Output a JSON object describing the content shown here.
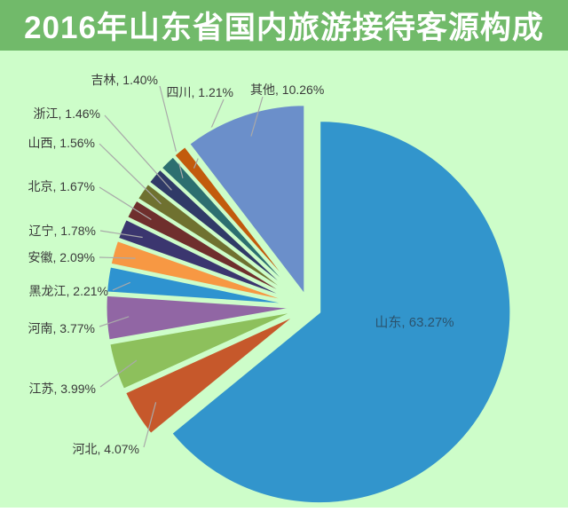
{
  "header": {
    "title": "2016年山东省国内旅游接待客源构成",
    "bg_color": "#71BA6A",
    "text_color": "#FFFFFF"
  },
  "chart_data": {
    "type": "pie",
    "title": "2016年山东省国内旅游接待客源构成",
    "unit": "%",
    "start_angle_deg": 0,
    "direction": "clockwise",
    "exploded": true,
    "legend_position": "none",
    "background_color": "#CDFDC9",
    "label_color": "#3A3A3A",
    "inside_label_color": "#2B536E",
    "leader_line_color": "#A9A9A9",
    "slices": [
      {
        "name": "山东",
        "value": 63.27,
        "label": "山东, 63.27%",
        "color": "#3295CC"
      },
      {
        "name": "河北",
        "value": 4.07,
        "label": "河北, 4.07%",
        "color": "#C6582B"
      },
      {
        "name": "江苏",
        "value": 3.99,
        "label": "江苏, 3.99%",
        "color": "#8DC05C"
      },
      {
        "name": "河南",
        "value": 3.77,
        "label": "河南, 3.77%",
        "color": "#9166A4"
      },
      {
        "name": "黑龙江",
        "value": 2.21,
        "label": "黑龙江, 2.21%",
        "color": "#2E93D0"
      },
      {
        "name": "安徽",
        "value": 2.09,
        "label": "安徽, 2.09%",
        "color": "#F79843"
      },
      {
        "name": "辽宁",
        "value": 1.78,
        "label": "辽宁, 1.78%",
        "color": "#3B366F"
      },
      {
        "name": "北京",
        "value": 1.67,
        "label": "北京, 1.67%",
        "color": "#6F2F2D"
      },
      {
        "name": "山西",
        "value": 1.56,
        "label": "山西, 1.56%",
        "color": "#6F7130"
      },
      {
        "name": "浙江",
        "value": 1.46,
        "label": "浙江, 1.46%",
        "color": "#303A67"
      },
      {
        "name": "吉林",
        "value": 1.4,
        "label": "吉林, 1.40%",
        "color": "#2D6F70"
      },
      {
        "name": "四川",
        "value": 1.21,
        "label": "四川, 1.21%",
        "color": "#C25B0D"
      },
      {
        "name": "其他",
        "value": 10.26,
        "label": "其他, 10.26%",
        "color": "#6B8FCA"
      }
    ]
  }
}
